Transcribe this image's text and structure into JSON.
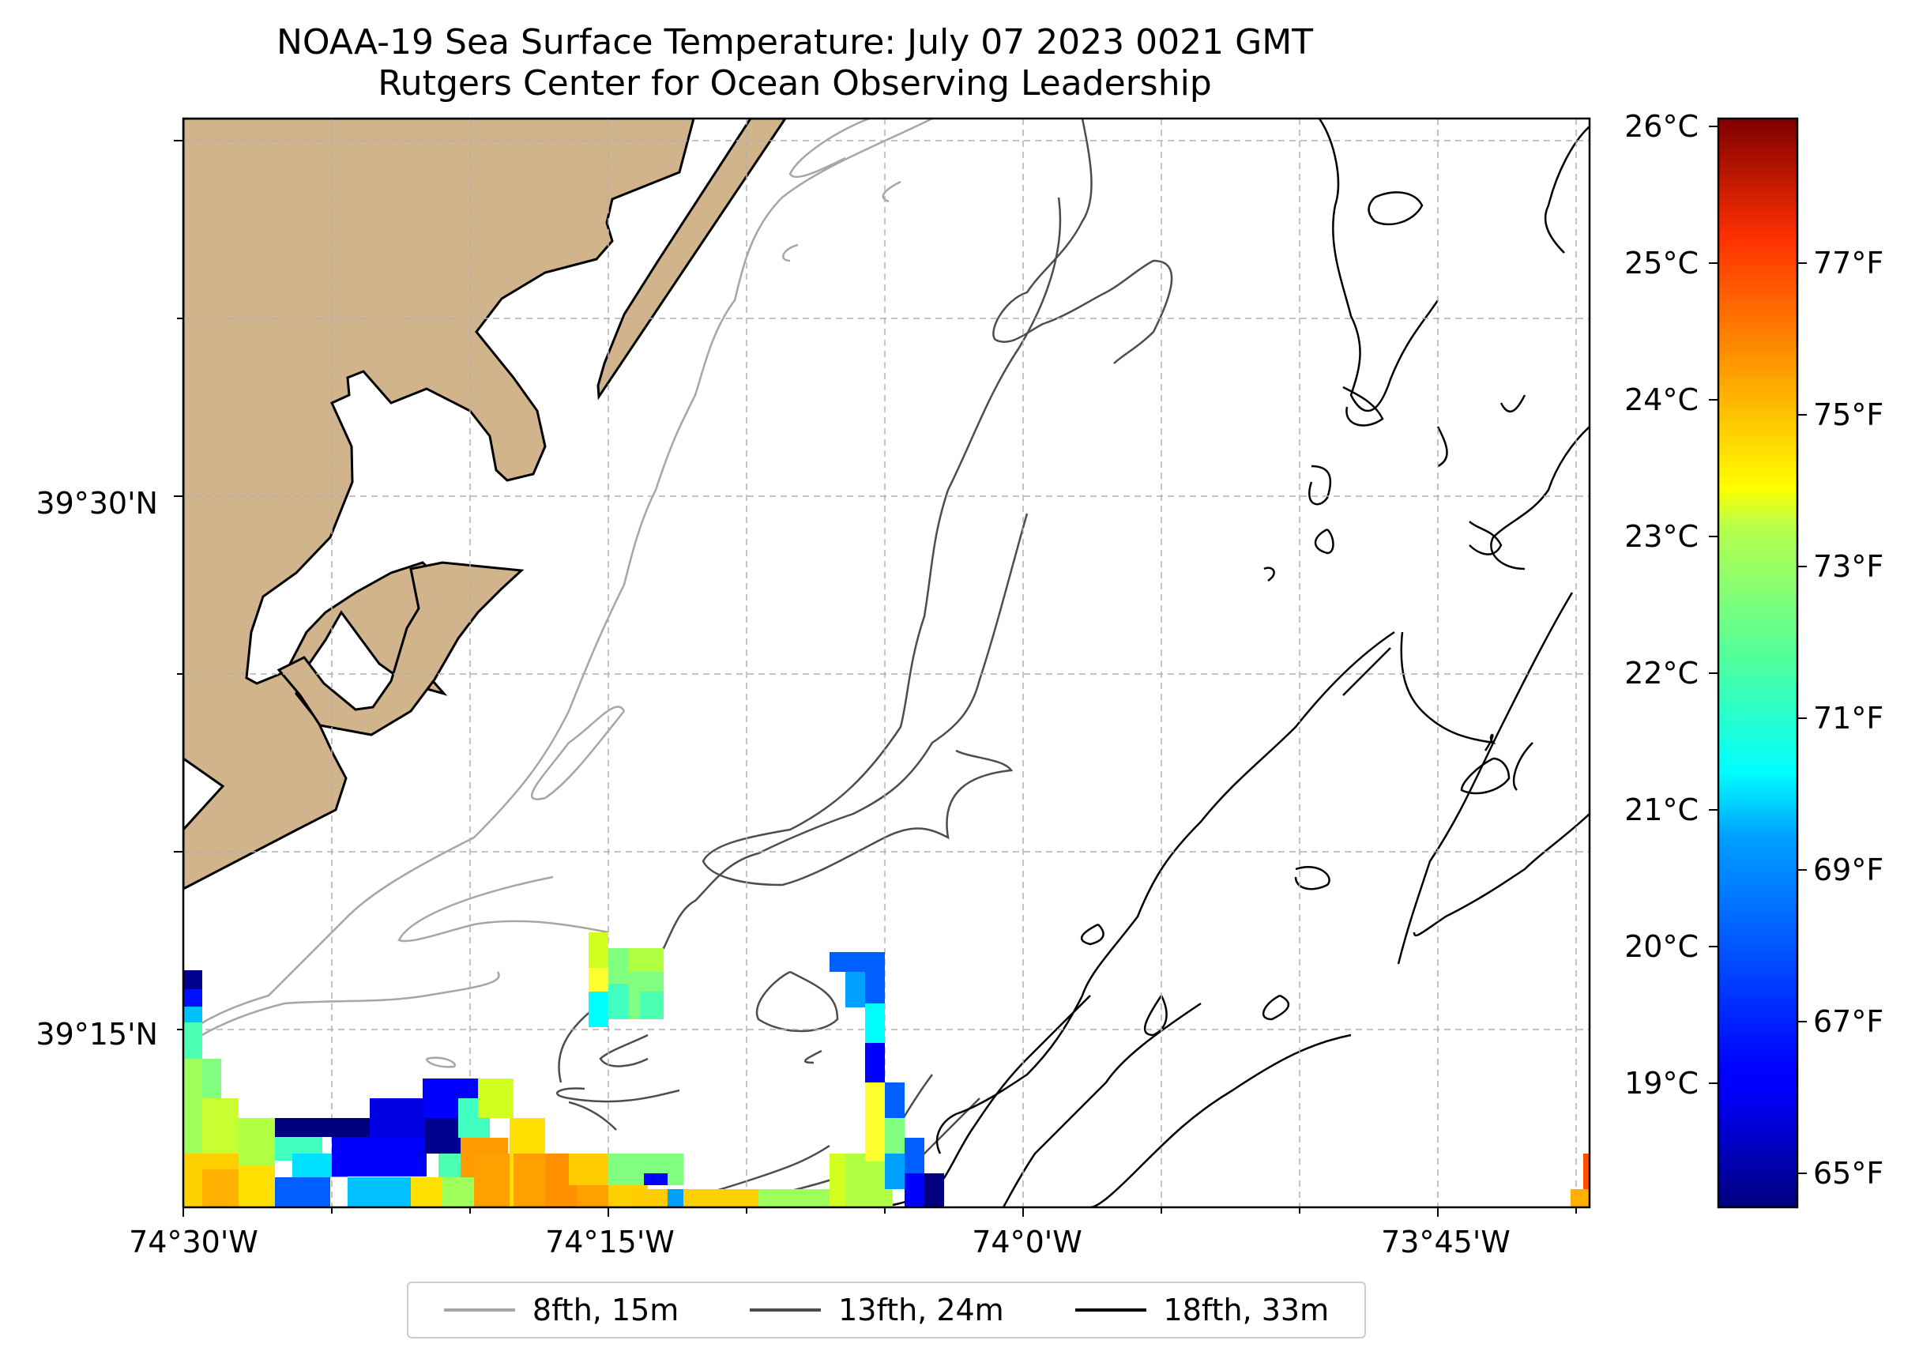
{
  "title": {
    "line1": "NOAA-19 Sea Surface Temperature: July 07 2023 0021 GMT",
    "line2": "Rutgers Center for Ocean Observing Leadership"
  },
  "axes": {
    "lat_labels": [
      "39°30'N",
      "39°15'N"
    ],
    "lon_labels": [
      "74°30'W",
      "74°15'W",
      "74°0'W",
      "73°45'W"
    ]
  },
  "colorbar": {
    "celsius_labels": [
      "26°C",
      "25°C",
      "24°C",
      "23°C",
      "22°C",
      "21°C",
      "20°C",
      "19°C"
    ],
    "fahrenheit_labels": [
      "77°F",
      "75°F",
      "73°F",
      "71°F",
      "69°F",
      "67°F",
      "65°F"
    ],
    "colormap": "jet",
    "celsius_range": [
      18,
      26
    ]
  },
  "legend": [
    {
      "label": "8fth, 15m",
      "color": "#a6a6a6"
    },
    {
      "label": "13fth, 24m",
      "color": "#4d4d4d"
    },
    {
      "label": "18fth, 33m",
      "color": "#000000"
    }
  ],
  "colors": {
    "land": "#d2b48c",
    "grid": "#b0b0b0"
  }
}
